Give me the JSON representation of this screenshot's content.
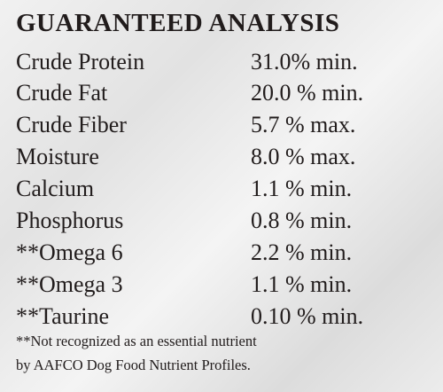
{
  "header": {
    "title": "GUARANTEED ANALYSIS"
  },
  "table": {
    "rows": [
      [
        "Crude Protein",
        "31.0% min."
      ],
      [
        "Crude Fat",
        "20.0 % min."
      ],
      [
        "Crude Fiber",
        "5.7 % max."
      ],
      [
        "Moisture",
        "8.0 % max."
      ],
      [
        "Calcium",
        "1.1 % min."
      ],
      [
        "Phosphorus",
        "0.8 % min."
      ],
      [
        "**Omega 6",
        "2.2 % min."
      ],
      [
        "**Omega 3",
        "1.1 % min."
      ],
      [
        "**Taurine",
        "0.10 % min."
      ]
    ]
  },
  "footnote": {
    "lines": [
      "**Not recognized as an essential nutrient",
      "by AAFCO Dog Food Nutrient Profiles."
    ]
  }
}
